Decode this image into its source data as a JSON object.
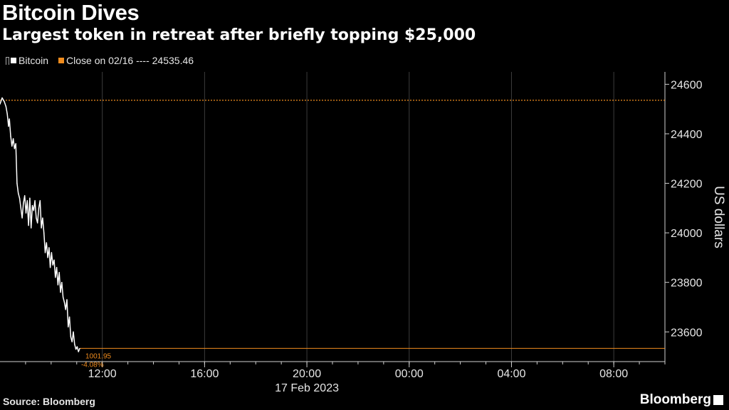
{
  "header": {
    "title": "Bitcoin Dives",
    "subtitle": "Largest token in retreat after briefly topping $25,000"
  },
  "legend": {
    "series_label": "Bitcoin",
    "close_label": "Close on 02/16 ---- 24535.46"
  },
  "colors": {
    "background": "#000000",
    "series": "#ffffff",
    "close": "#f08c1e",
    "grid": "#3c3c3c",
    "axis": "#cfcfcf"
  },
  "footer": {
    "source": "Source: Bloomberg",
    "brand": "Bloomberg"
  },
  "chart_data": {
    "type": "line",
    "ylabel": "US dollars",
    "ylim": [
      23480,
      24650
    ],
    "yticks": [
      23600,
      23800,
      24000,
      24200,
      24400,
      24600
    ],
    "x_date_label": "17 Feb 2023",
    "xlim": [
      "2023-02-17T08:00",
      "2023-02-18T10:00"
    ],
    "xticks": [
      {
        "t": "2023-02-17T12:00",
        "label": "12:00"
      },
      {
        "t": "2023-02-17T16:00",
        "label": "16:00"
      },
      {
        "t": "2023-02-17T20:00",
        "label": "20:00"
      },
      {
        "t": "2023-02-18T00:00",
        "label": "00:00"
      },
      {
        "t": "2023-02-18T04:00",
        "label": "04:00"
      },
      {
        "t": "2023-02-18T08:00",
        "label": "08:00"
      }
    ],
    "reference_line": {
      "name": "Close on 02/16",
      "value": 24535.46
    },
    "annotation": {
      "value_text": "1001.95",
      "pct_text": "-4.08%",
      "y": 23533.51
    },
    "series": [
      {
        "name": "Bitcoin",
        "x": [
          "2023-02-17T08:00",
          "2023-02-17T08:05",
          "2023-02-17T08:10",
          "2023-02-17T08:14",
          "2023-02-17T08:17",
          "2023-02-17T08:20",
          "2023-02-17T08:22",
          "2023-02-17T08:25",
          "2023-02-17T08:28",
          "2023-02-17T08:31",
          "2023-02-17T08:34",
          "2023-02-17T08:37",
          "2023-02-17T08:40",
          "2023-02-17T08:43",
          "2023-02-17T08:46",
          "2023-02-17T08:49",
          "2023-02-17T08:52",
          "2023-02-17T08:55",
          "2023-02-17T08:58",
          "2023-02-17T09:01",
          "2023-02-17T09:04",
          "2023-02-17T09:07",
          "2023-02-17T09:10",
          "2023-02-17T09:13",
          "2023-02-17T09:16",
          "2023-02-17T09:19",
          "2023-02-17T09:22",
          "2023-02-17T09:25",
          "2023-02-17T09:28",
          "2023-02-17T09:31",
          "2023-02-17T09:34",
          "2023-02-17T09:37",
          "2023-02-17T09:40",
          "2023-02-17T09:43",
          "2023-02-17T09:46",
          "2023-02-17T09:49",
          "2023-02-17T09:52",
          "2023-02-17T09:55",
          "2023-02-17T09:58",
          "2023-02-17T10:01",
          "2023-02-17T10:04",
          "2023-02-17T10:07",
          "2023-02-17T10:10",
          "2023-02-17T10:13",
          "2023-02-17T10:16",
          "2023-02-17T10:19",
          "2023-02-17T10:22",
          "2023-02-17T10:25",
          "2023-02-17T10:28",
          "2023-02-17T10:31",
          "2023-02-17T10:34",
          "2023-02-17T10:37",
          "2023-02-17T10:40",
          "2023-02-17T10:43",
          "2023-02-17T10:46",
          "2023-02-17T10:49",
          "2023-02-17T10:52",
          "2023-02-17T10:55",
          "2023-02-17T10:58",
          "2023-02-17T11:01",
          "2023-02-17T11:04",
          "2023-02-17T11:07"
        ],
        "y": [
          24520,
          24545,
          24530,
          24510,
          24480,
          24430,
          24460,
          24390,
          24350,
          24380,
          24340,
          24360,
          24200,
          24160,
          24140,
          24100,
          24060,
          24120,
          24150,
          24080,
          24130,
          24030,
          24140,
          24020,
          24110,
          24090,
          24130,
          24060,
          24040,
          24100,
          24130,
          24020,
          24060,
          24000,
          23920,
          23960,
          23900,
          23940,
          23860,
          23920,
          23870,
          23890,
          23820,
          23860,
          23790,
          23840,
          23760,
          23800,
          23740,
          23720,
          23690,
          23730,
          23620,
          23660,
          23580,
          23560,
          23600,
          23550,
          23530,
          23540,
          23520,
          23533
        ]
      }
    ]
  }
}
